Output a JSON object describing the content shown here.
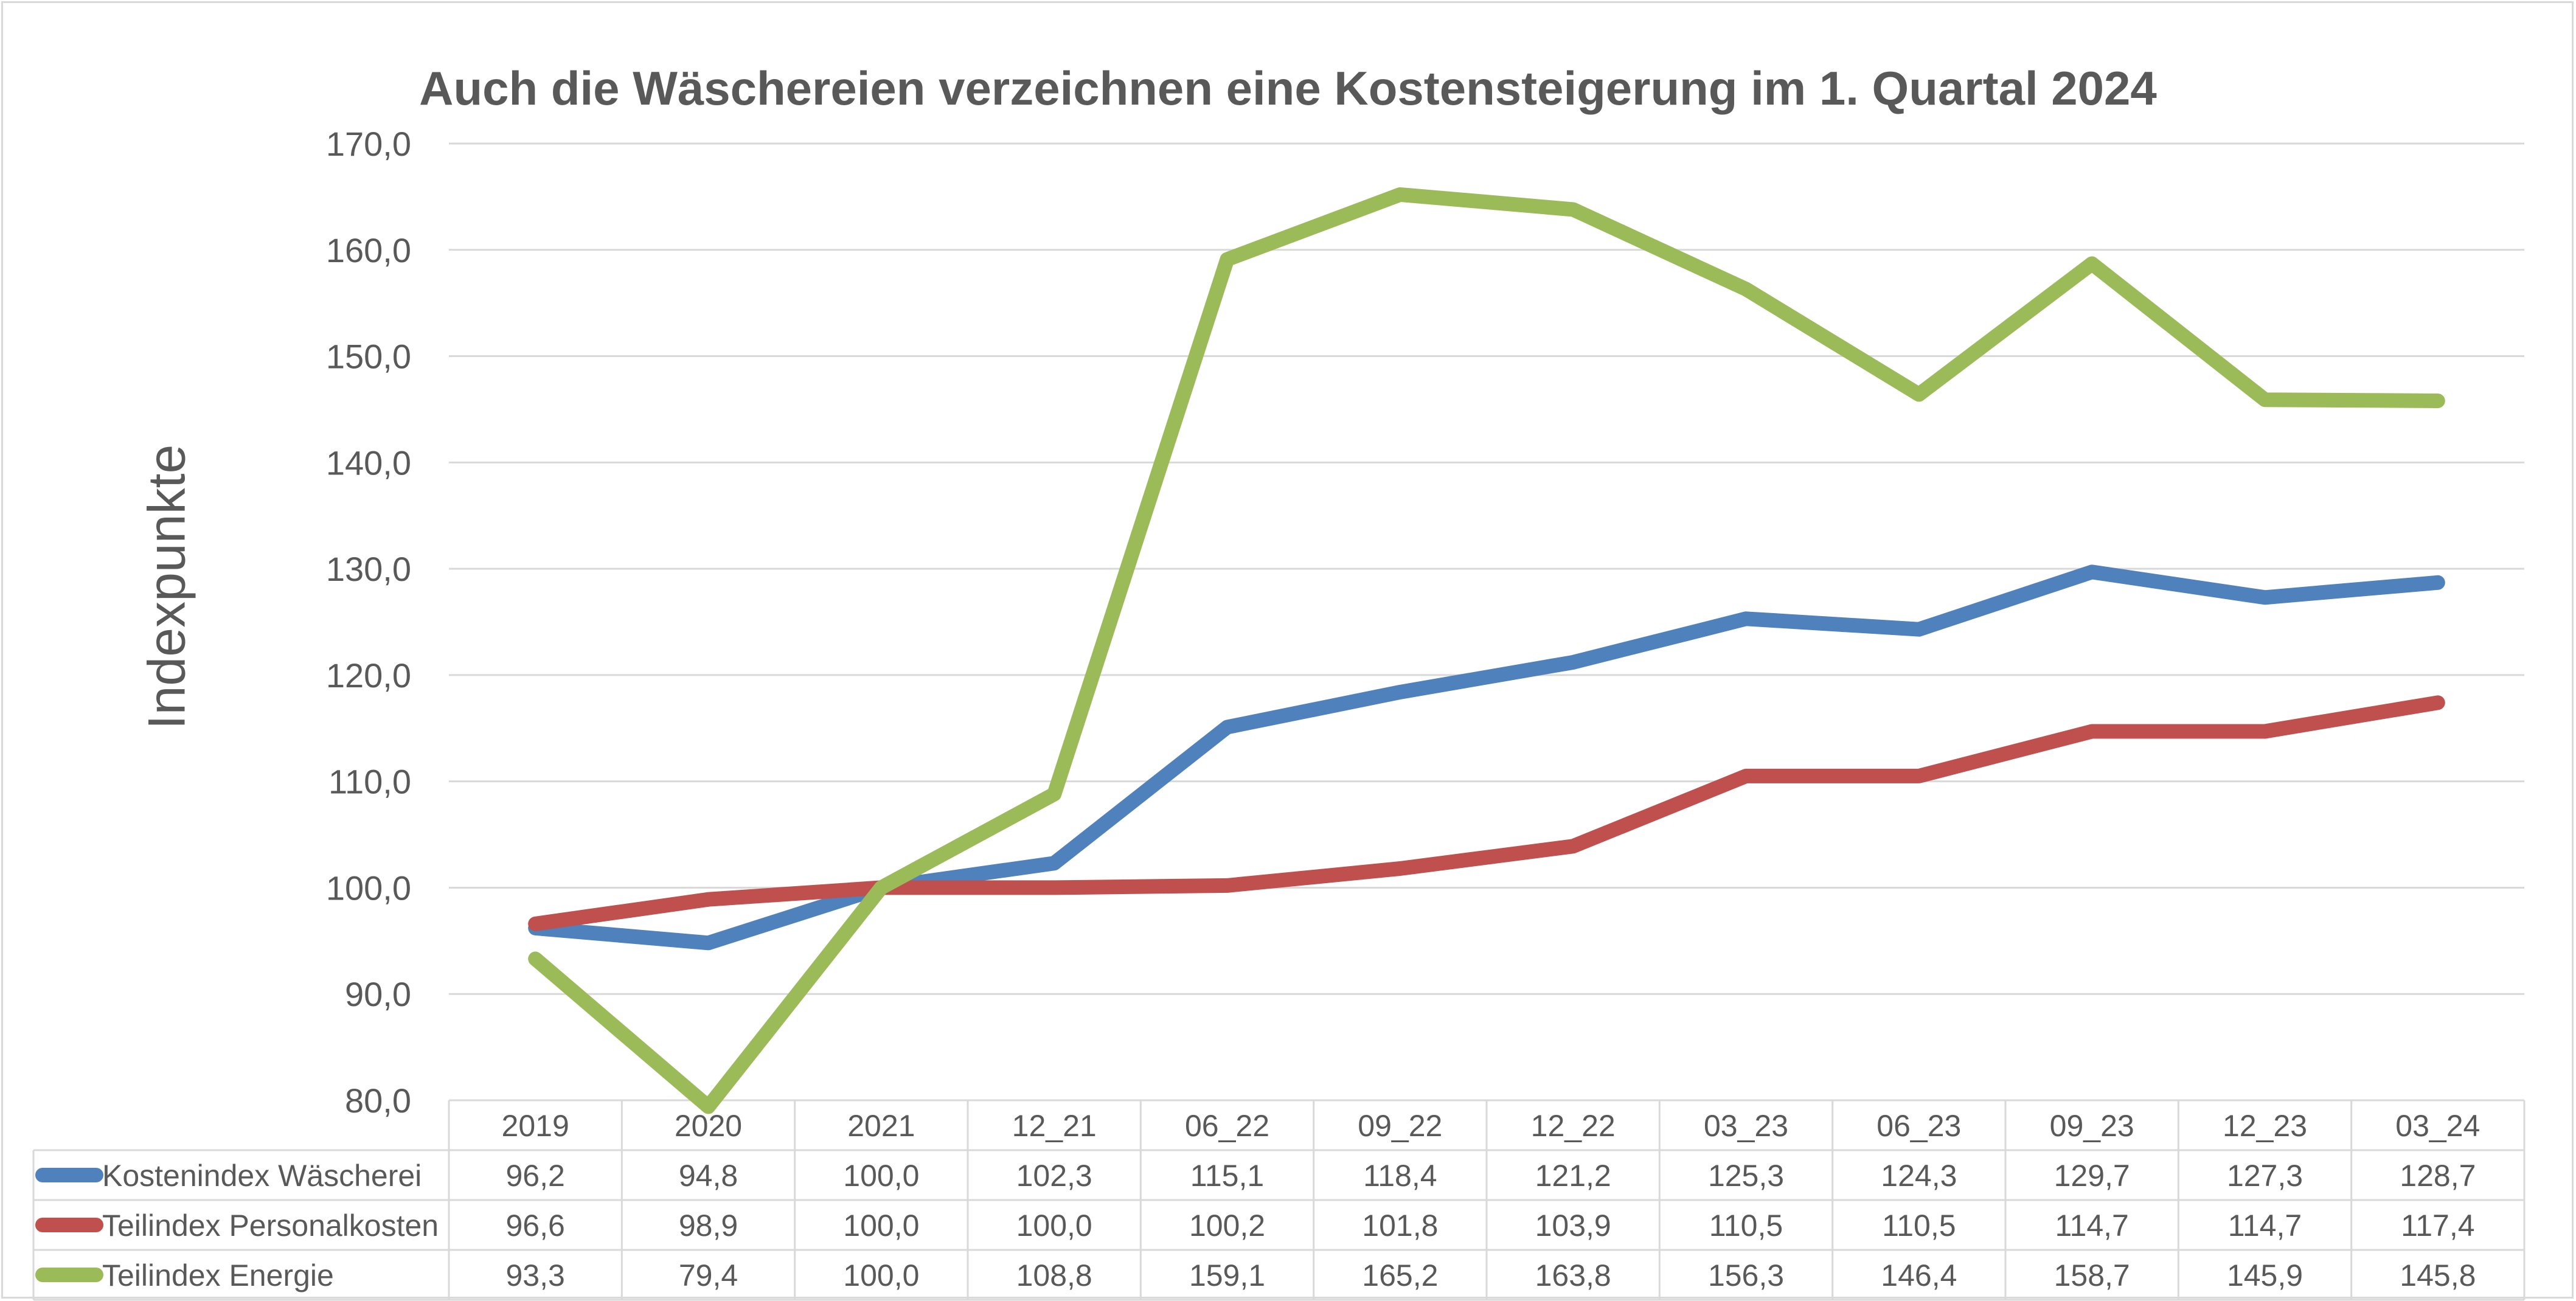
{
  "chart_data": {
    "type": "line",
    "title": "Auch die Wäschereien verzeichnen eine Kostensteigerung im 1. Quartal 2024",
    "xlabel": "",
    "ylabel": "Indexpunkte",
    "ylim": [
      80,
      170
    ],
    "yticks": [
      "80,0",
      "90,0",
      "100,0",
      "110,0",
      "120,0",
      "130,0",
      "140,0",
      "150,0",
      "160,0",
      "170,0"
    ],
    "grid": true,
    "legend": "data-table",
    "categories": [
      "2019",
      "2020",
      "2021",
      "12_21",
      "06_22",
      "09_22",
      "12_22",
      "03_23",
      "06_23",
      "09_23",
      "12_23",
      "03_24"
    ],
    "series": [
      {
        "name": "Kostenindex Wäscherei",
        "color": "#4f81bd",
        "values": [
          96.2,
          94.8,
          100.0,
          102.3,
          115.1,
          118.4,
          121.2,
          125.3,
          124.3,
          129.7,
          127.3,
          128.7
        ],
        "labels": [
          "96,2",
          "94,8",
          "100,0",
          "102,3",
          "115,1",
          "118,4",
          "121,2",
          "125,3",
          "124,3",
          "129,7",
          "127,3",
          "128,7"
        ]
      },
      {
        "name": "Teilindex Personalkosten",
        "color": "#c0504d",
        "values": [
          96.6,
          98.9,
          100.0,
          100.0,
          100.2,
          101.8,
          103.9,
          110.5,
          110.5,
          114.7,
          114.7,
          117.4
        ],
        "labels": [
          "96,6",
          "98,9",
          "100,0",
          "100,0",
          "100,2",
          "101,8",
          "103,9",
          "110,5",
          "110,5",
          "114,7",
          "114,7",
          "117,4"
        ]
      },
      {
        "name": "Teilindex Energie",
        "color": "#9bbb59",
        "values": [
          93.3,
          79.4,
          100.0,
          108.8,
          159.1,
          165.2,
          163.8,
          156.3,
          146.4,
          158.7,
          145.9,
          145.8
        ],
        "labels": [
          "93,3",
          "79,4",
          "100,0",
          "108,8",
          "159,1",
          "165,2",
          "163,8",
          "156,3",
          "146,4",
          "158,7",
          "145,9",
          "145,8"
        ]
      }
    ]
  }
}
